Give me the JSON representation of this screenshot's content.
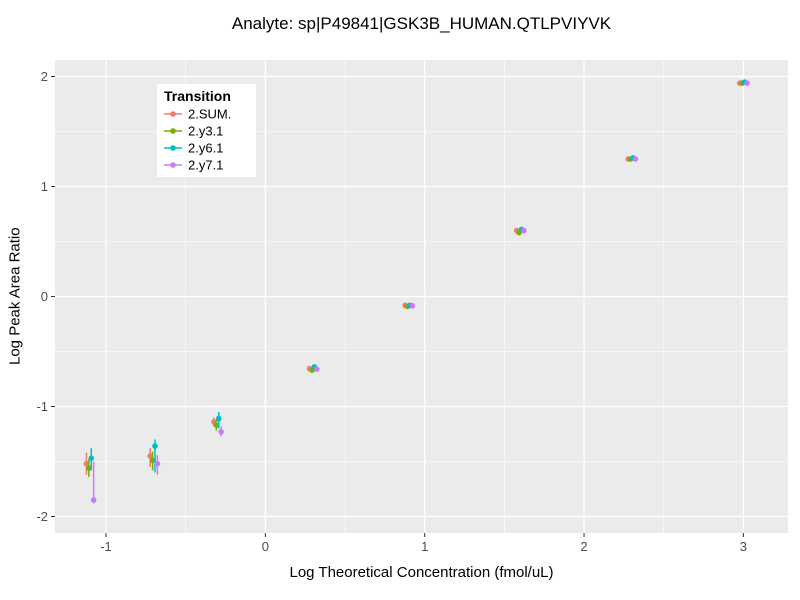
{
  "chart_data": {
    "type": "scatter",
    "title": "Analyte: sp|P49841|GSK3B_HUMAN.QTLPVIYVK",
    "xlabel": "Log Theoretical Concentration (fmol/uL)",
    "ylabel": "Log Peak Area Ratio",
    "legend_title": "Transition",
    "legend_position": "top-left-inset",
    "grid": "on",
    "xlim": [
      -1.32,
      3.28
    ],
    "ylim": [
      -2.15,
      2.15
    ],
    "xticks": [
      -1,
      0,
      1,
      2,
      3
    ],
    "yticks": [
      -2,
      -1,
      0,
      1,
      2
    ],
    "x": [
      -1.1,
      -0.7,
      -0.3,
      0.3,
      0.9,
      1.6,
      2.3,
      3.0
    ],
    "series": [
      {
        "name": "2.SUM.",
        "color": "#F8766D",
        "values": [
          -1.52,
          -1.45,
          -1.14,
          -0.655,
          -0.08,
          0.6,
          1.25,
          1.94
        ],
        "lo": [
          -1.62,
          -1.55,
          -1.18,
          -0.67,
          -0.09,
          0.59,
          1.24,
          1.93
        ],
        "hi": [
          -1.42,
          -1.38,
          -1.1,
          -0.64,
          -0.07,
          0.61,
          1.26,
          1.95
        ]
      },
      {
        "name": "2.y3.1",
        "color": "#7CAE00",
        "values": [
          -1.56,
          -1.49,
          -1.17,
          -0.67,
          -0.09,
          0.58,
          1.25,
          1.94
        ],
        "lo": [
          -1.64,
          -1.58,
          -1.22,
          -0.69,
          -0.1,
          0.57,
          1.24,
          1.93
        ],
        "hi": [
          -1.48,
          -1.41,
          -1.12,
          -0.65,
          -0.08,
          0.59,
          1.26,
          1.95
        ]
      },
      {
        "name": "2.y6.1",
        "color": "#00BFC4",
        "values": [
          -1.47,
          -1.36,
          -1.11,
          -0.64,
          -0.08,
          0.61,
          1.26,
          1.95
        ],
        "lo": [
          -1.58,
          -1.6,
          -1.2,
          -0.66,
          -0.09,
          0.6,
          1.25,
          1.94
        ],
        "hi": [
          -1.38,
          -1.3,
          -1.05,
          -0.62,
          -0.07,
          0.62,
          1.27,
          1.96
        ]
      },
      {
        "name": "2.y7.1",
        "color": "#C77CFF",
        "values": [
          -1.85,
          -1.52,
          -1.23,
          -0.66,
          -0.085,
          0.6,
          1.25,
          1.94
        ],
        "lo": [
          -1.88,
          -1.62,
          -1.27,
          -0.68,
          -0.095,
          0.59,
          1.24,
          1.93
        ],
        "hi": [
          -1.5,
          -1.44,
          -1.18,
          -0.64,
          -0.075,
          0.61,
          1.26,
          1.95
        ]
      }
    ],
    "colors": {
      "panel_background": "#EBEBEB",
      "gridline": "#FFFFFF",
      "tick_label": "#4d4d4d",
      "tick_mark": "#333333",
      "legend_background": "#FFFFFF",
      "figure_background": "#FFFFFF"
    }
  }
}
